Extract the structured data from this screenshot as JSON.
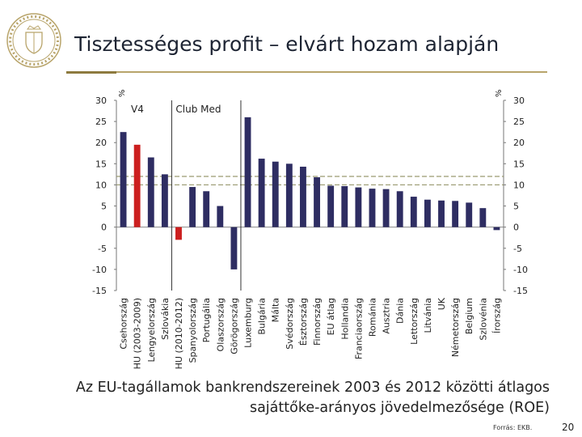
{
  "slide": {
    "title": "Tisztességes profit – elvárt hozam alapján",
    "caption_line1": "Az EU-tagállamok bankrendszereinek 2003 és 2012 közötti átlagos",
    "caption_line2": "sajáttőke-arányos jövedelmezősége (ROE)",
    "source": "Forrás: EKB.",
    "page_number": "20"
  },
  "colors": {
    "bar": "#2e2d62",
    "highlight": "#cc1f1f",
    "reference_line": "#9a9a70",
    "text": "#222222"
  },
  "chart_data": {
    "type": "bar",
    "title": "",
    "xlabel": "",
    "ylabel_left": "%",
    "ylabel_right": "%",
    "ylim": [
      -15,
      30
    ],
    "yticks": [
      "30",
      "25",
      "20",
      "15",
      "10",
      "5",
      "0",
      "-5",
      "-10",
      "-15"
    ],
    "grid": false,
    "categories": [
      "Csehország",
      "HU (2003-2009)",
      "Lengyelország",
      "Szlovákia",
      "HU (2010-2012)",
      "Spanyolország",
      "Portugália",
      "Olaszország",
      "Görögország",
      "Luxemburg",
      "Bulgária",
      "Málta",
      "Svédország",
      "Észtország",
      "Finnország",
      "EU átlag",
      "Hollandia",
      "Franciaország",
      "Románia",
      "Ausztria",
      "Dánia",
      "Lettország",
      "Litvánia",
      "UK",
      "Németország",
      "Belgium",
      "Szlovénia",
      "Írország"
    ],
    "values": [
      22.5,
      19.5,
      16.5,
      12.5,
      -3,
      9.5,
      8.5,
      5,
      -10,
      26,
      16.2,
      15.5,
      15,
      14.3,
      11.8,
      9.8,
      9.7,
      9.4,
      9.1,
      9,
      8.5,
      7.2,
      6.5,
      6.3,
      6.2,
      5.8,
      4.5,
      -0.7
    ],
    "highlighted": [
      "HU (2003-2009)",
      "HU (2010-2012)"
    ],
    "reference_lines": [
      10,
      12
    ],
    "group_labels": [
      "V4",
      "Club Med"
    ]
  }
}
